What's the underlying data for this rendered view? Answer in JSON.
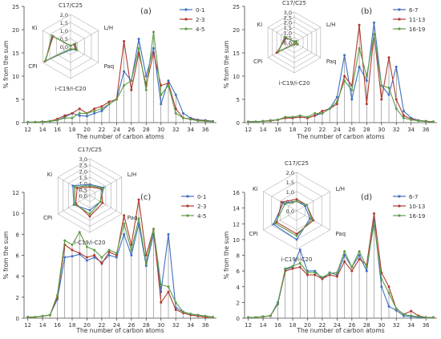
{
  "colors": {
    "s1": "#3f6fc4",
    "s2": "#b03a2e",
    "s3": "#5e9d47"
  },
  "chart_data": [
    {
      "type": "line",
      "panel": "(a)",
      "xlabel": "The number of carbon atoms",
      "ylabel": "% from the sum",
      "xlim": [
        11.5,
        37.5
      ],
      "ylim": [
        0,
        25
      ],
      "yticks": [
        0,
        5,
        10,
        15,
        20,
        25
      ],
      "xticks": [
        12,
        14,
        16,
        18,
        20,
        22,
        24,
        26,
        28,
        30,
        32,
        34,
        36
      ],
      "x": [
        12,
        13,
        14,
        15,
        16,
        17,
        18,
        19,
        20,
        21,
        22,
        23,
        24,
        25,
        26,
        27,
        28,
        29,
        30,
        31,
        32,
        33,
        34,
        35,
        36,
        37
      ],
      "legend": "top-right",
      "series": [
        {
          "name": "0-1",
          "values": [
            0.1,
            0.1,
            0.2,
            0.3,
            0.5,
            1.2,
            2.0,
            1.5,
            1.4,
            2.0,
            2.5,
            4.0,
            5.0,
            11.0,
            9.0,
            18.0,
            10.0,
            16.0,
            4.0,
            9.0,
            6.0,
            2.0,
            1.0,
            0.6,
            0.5,
            0.3
          ]
        },
        {
          "name": "2-3",
          "values": [
            0.1,
            0.1,
            0.2,
            0.3,
            0.8,
            1.5,
            2.0,
            3.0,
            2.0,
            3.0,
            3.5,
            4.5,
            5.0,
            17.5,
            7.0,
            15.0,
            8.0,
            15.0,
            8.0,
            8.5,
            3.0,
            1.0,
            0.8,
            0.5,
            0.4,
            0.2
          ]
        },
        {
          "name": "4-5",
          "values": [
            0.1,
            0.1,
            0.2,
            0.3,
            0.5,
            1.0,
            1.0,
            2.0,
            2.0,
            2.5,
            3.0,
            4.0,
            5.0,
            8.0,
            9.0,
            16.0,
            7.0,
            19.5,
            6.0,
            8.0,
            2.0,
            1.0,
            0.7,
            0.4,
            0.3,
            0.2
          ]
        }
      ],
      "radar": {
        "axes": [
          "C17/C25",
          "L/H",
          "Paq",
          "i-C19/i-C20",
          "CPI",
          "Ki"
        ],
        "max": 2.0,
        "rings": [
          "0,0",
          "0,5",
          "1,0",
          "1,5",
          "2,0"
        ],
        "series": [
          {
            "name": "0-1",
            "values": [
              0.05,
              0.3,
              0.4,
              0.2,
              1.8,
              1.3
            ]
          },
          {
            "name": "2-3",
            "values": [
              0.05,
              0.25,
              0.35,
              0.15,
              1.85,
              1.25
            ]
          },
          {
            "name": "4-5",
            "values": [
              0.05,
              0.35,
              0.45,
              0.15,
              1.8,
              1.35
            ]
          }
        ]
      }
    },
    {
      "type": "line",
      "panel": "(b)",
      "xlabel": "The number of carbon atoms",
      "ylabel": "% from the sum",
      "xlim": [
        11.5,
        37.5
      ],
      "ylim": [
        0,
        25
      ],
      "yticks": [
        0,
        5,
        10,
        15,
        20,
        25
      ],
      "xticks": [
        12,
        14,
        16,
        18,
        20,
        22,
        24,
        26,
        28,
        30,
        32,
        34,
        36
      ],
      "x": [
        12,
        13,
        14,
        15,
        16,
        17,
        18,
        19,
        20,
        21,
        22,
        23,
        24,
        25,
        26,
        27,
        28,
        29,
        30,
        31,
        32,
        33,
        34,
        35,
        36,
        37
      ],
      "legend": "top-right",
      "series": [
        {
          "name": "6-7",
          "values": [
            0.2,
            0.2,
            0.3,
            0.4,
            0.6,
            1.0,
            1.0,
            1.2,
            1.0,
            1.5,
            2.0,
            3.0,
            5.5,
            14.5,
            5.0,
            12.0,
            9.0,
            21.5,
            8.0,
            6.0,
            12.0,
            2.5,
            1.0,
            0.5,
            0.3,
            0.2
          ]
        },
        {
          "name": "11-13",
          "values": [
            0.2,
            0.2,
            0.3,
            0.4,
            0.6,
            1.0,
            1.0,
            1.2,
            1.0,
            1.5,
            2.5,
            3.0,
            4.0,
            10.0,
            8.0,
            21.0,
            4.0,
            19.0,
            5.0,
            14.0,
            5.0,
            1.5,
            0.8,
            0.4,
            0.3,
            0.2
          ]
        },
        {
          "name": "16-19",
          "values": [
            0.2,
            0.2,
            0.3,
            0.5,
            0.6,
            1.2,
            1.2,
            1.5,
            1.2,
            2.0,
            2.0,
            3.0,
            4.5,
            9.0,
            7.0,
            16.0,
            10.0,
            19.0,
            8.0,
            7.5,
            3.0,
            1.0,
            0.6,
            0.4,
            0.2,
            0.2
          ]
        }
      ],
      "radar": {
        "axes": [
          "C17/C25",
          "L/H",
          "Paq",
          "i-C19/i-C20",
          "CPI",
          "Ki"
        ],
        "max": 3.0,
        "rings": [
          "0,0",
          "0,5",
          "1,0",
          "1,5",
          "2,0",
          "2,5",
          "3,0"
        ],
        "series": [
          {
            "name": "6-7",
            "values": [
              0.1,
              0.2,
              0.3,
              0.2,
              1.9,
              1.0
            ]
          },
          {
            "name": "11-13",
            "values": [
              0.1,
              0.2,
              0.3,
              0.15,
              2.0,
              0.9
            ]
          },
          {
            "name": "16-19",
            "values": [
              0.1,
              0.25,
              0.35,
              0.2,
              1.8,
              1.1
            ]
          }
        ]
      }
    },
    {
      "type": "line",
      "panel": "(c)",
      "xlabel": "The number of carbon atoms",
      "ylabel": "% from the sum",
      "xlim": [
        11.5,
        37.5
      ],
      "ylim": [
        0,
        12
      ],
      "yticks": [
        0,
        2,
        4,
        6,
        8,
        10,
        12
      ],
      "xticks": [
        12,
        14,
        16,
        18,
        20,
        22,
        24,
        26,
        28,
        30,
        32,
        34,
        36
      ],
      "x": [
        12,
        13,
        14,
        15,
        16,
        17,
        18,
        19,
        20,
        21,
        22,
        23,
        24,
        25,
        26,
        27,
        28,
        29,
        30,
        31,
        32,
        33,
        34,
        35,
        36,
        37
      ],
      "legend": "top-right",
      "series": [
        {
          "name": "0-1",
          "values": [
            0.1,
            0.1,
            0.2,
            0.3,
            1.8,
            5.8,
            5.9,
            6.1,
            5.5,
            5.8,
            5.3,
            6.0,
            5.8,
            8.0,
            6.0,
            9.0,
            5.0,
            8.0,
            2.5,
            8.0,
            1.0,
            0.6,
            0.4,
            0.3,
            0.2,
            0.1
          ]
        },
        {
          "name": "2-3",
          "values": [
            0.1,
            0.1,
            0.2,
            0.3,
            2.0,
            7.0,
            6.5,
            6.2,
            5.8,
            6.0,
            5.2,
            6.3,
            6.0,
            9.8,
            7.0,
            11.3,
            6.0,
            8.5,
            1.5,
            2.5,
            0.8,
            0.5,
            0.3,
            0.2,
            0.1,
            0.1
          ]
        },
        {
          "name": "4-5",
          "values": [
            0.1,
            0.1,
            0.2,
            0.3,
            2.2,
            7.4,
            7.0,
            8.2,
            6.8,
            6.5,
            5.8,
            6.5,
            6.2,
            9.0,
            6.5,
            9.5,
            5.2,
            8.5,
            3.2,
            3.0,
            1.5,
            0.6,
            0.4,
            0.3,
            0.2,
            0.1
          ]
        }
      ],
      "radar": {
        "axes": [
          "C17/C25",
          "L/H",
          "Paq",
          "i-C19/i-C20",
          "CPI",
          "Ki"
        ],
        "max": 3.0,
        "rings": [
          "0,0",
          "0,5",
          "1,0",
          "1,5",
          "2,0",
          "2,5",
          "3,0"
        ],
        "series": [
          {
            "name": "0-1",
            "values": [
              0.9,
              1.3,
              1.0,
              1.2,
              1.5,
              1.6
            ]
          },
          {
            "name": "2-3",
            "values": [
              0.7,
              1.1,
              1.2,
              1.7,
              1.3,
              1.2
            ]
          },
          {
            "name": "4-5",
            "values": [
              0.8,
              1.2,
              1.0,
              1.5,
              1.4,
              1.4
            ]
          }
        ]
      }
    },
    {
      "type": "line",
      "panel": "(d)",
      "xlabel": "The number of carbon atoms",
      "ylabel": "% from the sum",
      "xlim": [
        11.5,
        37.5
      ],
      "ylim": [
        0,
        16
      ],
      "yticks": [
        0,
        2,
        4,
        6,
        8,
        10,
        12,
        14,
        16
      ],
      "xticks": [
        12,
        14,
        16,
        18,
        20,
        22,
        24,
        26,
        28,
        30,
        32,
        34,
        36
      ],
      "x": [
        12,
        13,
        14,
        15,
        16,
        17,
        18,
        19,
        20,
        21,
        22,
        23,
        24,
        25,
        26,
        27,
        28,
        29,
        30,
        31,
        32,
        33,
        34,
        35,
        36,
        37
      ],
      "legend": "top-right",
      "series": [
        {
          "name": "6-7",
          "values": [
            0.1,
            0.1,
            0.2,
            0.3,
            2.0,
            6.2,
            6.5,
            8.7,
            6.0,
            6.0,
            5.0,
            5.8,
            5.5,
            8.0,
            6.5,
            8.0,
            6.0,
            12.5,
            4.0,
            1.5,
            1.0,
            0.3,
            0.2,
            0.1,
            0.1,
            0.1
          ]
        },
        {
          "name": "10-13",
          "values": [
            0.1,
            0.1,
            0.2,
            0.3,
            1.8,
            6.0,
            6.3,
            6.5,
            5.5,
            5.5,
            5.0,
            5.5,
            5.3,
            7.2,
            6.0,
            7.5,
            6.8,
            13.3,
            5.8,
            4.0,
            1.2,
            0.5,
            0.9,
            0.3,
            0.1,
            0.1
          ]
        },
        {
          "name": "16-19",
          "values": [
            0.1,
            0.1,
            0.2,
            0.3,
            1.8,
            6.3,
            6.6,
            7.0,
            5.8,
            5.8,
            5.2,
            5.7,
            5.8,
            8.5,
            6.5,
            8.5,
            6.5,
            12.0,
            5.0,
            3.2,
            1.2,
            0.5,
            0.3,
            0.2,
            0.1,
            0.1
          ]
        }
      ],
      "radar": {
        "axes": [
          "C17/C25",
          "L/H",
          "Paq",
          "i-C19/i-C20",
          "CPI",
          "Ki"
        ],
        "max": 2.0,
        "rings": [
          "0,0",
          "0,5",
          "1,0",
          "1,5",
          "2,0"
        ],
        "series": [
          {
            "name": "6-7",
            "values": [
              0.5,
              0.5,
              0.8,
              1.5,
              1.4,
              0.8
            ]
          },
          {
            "name": "10-13",
            "values": [
              0.6,
              0.6,
              1.0,
              1.2,
              1.2,
              0.9
            ]
          },
          {
            "name": "16-19",
            "values": [
              0.5,
              0.6,
              0.9,
              1.3,
              1.3,
              0.7
            ]
          }
        ]
      }
    }
  ]
}
